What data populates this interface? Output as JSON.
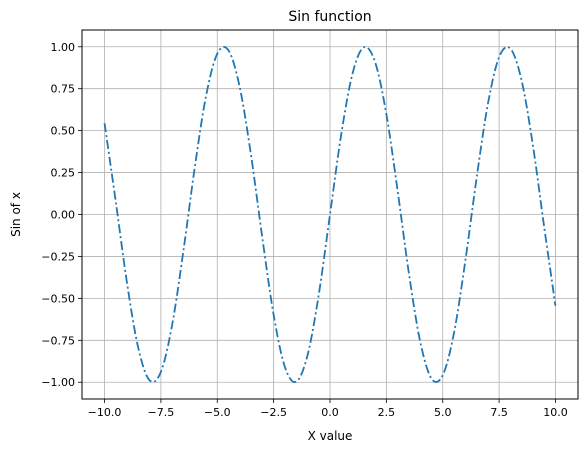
{
  "chart_data": {
    "type": "line",
    "title": "Sin function",
    "xlabel": "X value",
    "ylabel": "Sin of x",
    "xlim": [
      -11.0,
      11.0
    ],
    "ylim": [
      -1.1,
      1.1
    ],
    "x_ticks": [
      -10.0,
      -7.5,
      -5.0,
      -2.5,
      0.0,
      2.5,
      5.0,
      7.5,
      10.0
    ],
    "x_tick_labels": [
      "−10.0",
      "−7.5",
      "−5.0",
      "−2.5",
      "0.0",
      "2.5",
      "5.0",
      "7.5",
      "10.0"
    ],
    "y_ticks": [
      -1.0,
      -0.75,
      -0.5,
      -0.25,
      0.0,
      0.25,
      0.5,
      0.75,
      1.0
    ],
    "y_tick_labels": [
      "−1.00",
      "−0.75",
      "−0.50",
      "−0.25",
      "0.00",
      "0.25",
      "0.50",
      "0.75",
      "1.00"
    ],
    "grid": true,
    "line_style": "dash-dot",
    "series": [
      {
        "color": "#1f77b4",
        "x": [
          -10.0,
          -9.5,
          -9.0,
          -8.5,
          -8.0,
          -7.5,
          -7.0,
          -6.5,
          -6.0,
          -5.5,
          -5.0,
          -4.5,
          -4.0,
          -3.5,
          -3.0,
          -2.5,
          -2.0,
          -1.5,
          -1.0,
          -0.5,
          0.0,
          0.5,
          1.0,
          1.5,
          2.0,
          2.5,
          3.0,
          3.5,
          4.0,
          4.5,
          5.0,
          5.5,
          6.0,
          6.5,
          7.0,
          7.5,
          8.0,
          8.5,
          9.0,
          9.5,
          10.0
        ],
        "y": [
          0.544,
          0.075,
          -0.412,
          -0.798,
          -0.989,
          -0.938,
          -0.657,
          -0.215,
          0.279,
          0.706,
          0.959,
          0.978,
          0.757,
          0.351,
          -0.141,
          -0.598,
          -0.909,
          -0.997,
          -0.841,
          -0.479,
          0.0,
          0.479,
          0.841,
          0.997,
          0.909,
          0.598,
          0.141,
          -0.351,
          -0.757,
          -0.978,
          -0.959,
          -0.706,
          -0.279,
          0.215,
          0.657,
          0.938,
          0.989,
          0.798,
          0.412,
          -0.075,
          -0.544
        ]
      }
    ]
  }
}
